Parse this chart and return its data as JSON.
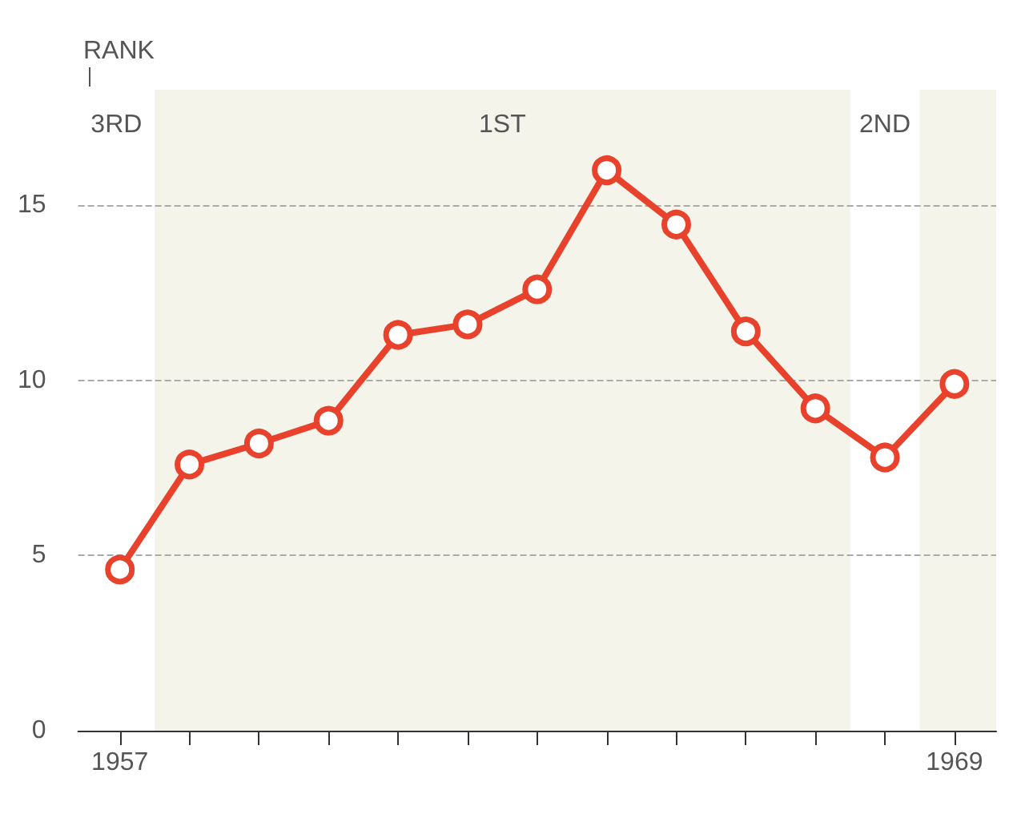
{
  "chart_data": {
    "type": "line",
    "x": [
      1957,
      1958,
      1959,
      1960,
      1961,
      1962,
      1963,
      1964,
      1965,
      1966,
      1967,
      1968,
      1969
    ],
    "series": [
      {
        "color": "#e8412c",
        "values": [
          4.6,
          7.6,
          8.2,
          8.85,
          11.3,
          11.6,
          12.6,
          16.0,
          14.45,
          11.4,
          9.2,
          7.8,
          9.9
        ]
      }
    ],
    "xlim": [
      1956.4,
      1969.6
    ],
    "xticks": [
      1957,
      {
        "value": 1958,
        "label": null
      },
      {
        "value": 1959,
        "label": null
      },
      {
        "value": 1960,
        "label": null
      },
      {
        "value": 1961,
        "label": null
      },
      {
        "value": 1962,
        "label": null
      },
      {
        "value": 1963,
        "label": null
      },
      {
        "value": 1964,
        "label": null
      },
      {
        "value": 1965,
        "label": null
      },
      {
        "value": 1966,
        "label": null
      },
      {
        "value": 1967,
        "label": null
      },
      {
        "value": 1968,
        "label": null
      },
      1969
    ],
    "ylim": [
      0,
      18.3
    ],
    "yticks": [
      0,
      5,
      10,
      15
    ],
    "bands": [
      {
        "axis": "x",
        "from": 1957.5,
        "to": 1967.5,
        "label": "1ST",
        "color": "#f4f4ea"
      },
      {
        "axis": "x",
        "from": 1968.5,
        "to": 1969.6,
        "label": null,
        "color": "#f4f4ea"
      }
    ],
    "annotations": [
      "RANK",
      "3RD",
      "2ND"
    ],
    "grid": "y",
    "marker": "circle",
    "line_style": "solid"
  }
}
